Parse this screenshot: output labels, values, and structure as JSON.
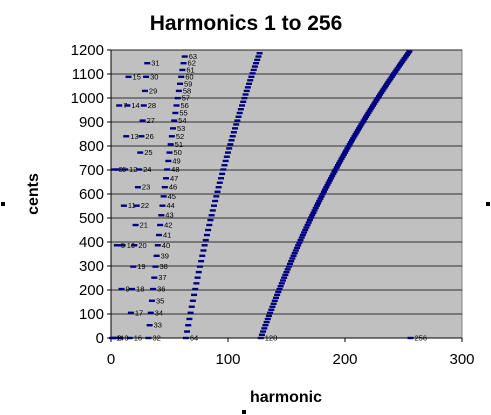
{
  "chart_data": {
    "type": "scatter",
    "title": "Harmonics 1 to 256",
    "xlabel": "harmonic",
    "ylabel": "cents",
    "xlim": [
      0,
      300
    ],
    "ylim": [
      0,
      1200
    ],
    "x_ticks": [
      0,
      100,
      200,
      300
    ],
    "y_ticks": [
      0,
      100,
      200,
      300,
      400,
      500,
      600,
      700,
      800,
      900,
      1000,
      1100,
      1200
    ],
    "grid": "horizontal",
    "legend": "none",
    "plot_background": "#C0C0C0",
    "series": [
      {
        "marker": "dash",
        "color": "#000080",
        "x_harmonic_range": [
          1,
          256
        ],
        "y_formula": "cents = 1200 * fractional_part(log2(harmonic))",
        "visible_point_labels": [
          "1",
          "2",
          "4",
          "8",
          "16",
          "32",
          "64",
          "128",
          "256",
          "3",
          "5",
          "6",
          "7",
          "9",
          "10",
          "11",
          "12",
          "13",
          "14",
          "15",
          "17",
          "18",
          "19",
          "20",
          "21",
          "22",
          "23",
          "24",
          "25",
          "26",
          "27",
          "28",
          "29",
          "30",
          "31",
          "33",
          "34",
          "35",
          "36",
          "37",
          "38",
          "39",
          "40",
          "41",
          "42",
          "43",
          "44",
          "45",
          "46",
          "47",
          "48",
          "49",
          "50",
          "51",
          "52",
          "53",
          "54",
          "55",
          "56",
          "57",
          "58",
          "59",
          "60",
          "61",
          "62",
          "63"
        ]
      }
    ]
  }
}
